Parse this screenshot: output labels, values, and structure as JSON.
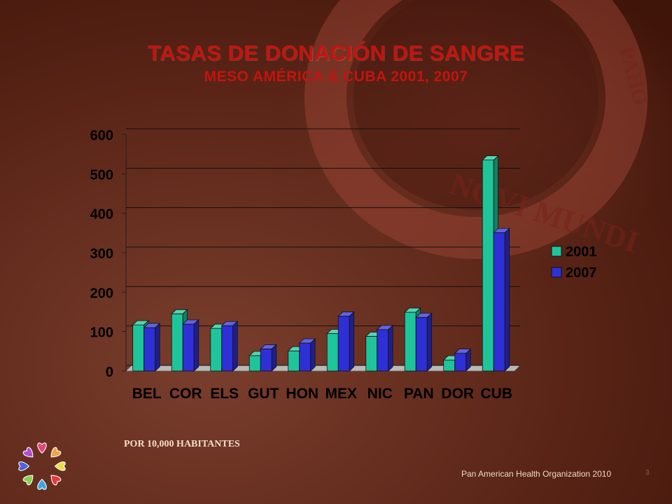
{
  "slide": {
    "title": "TASAS DE DONACIÓN DE SANGRE",
    "subtitle": "MESO AMÉRICA & CUBA 2001, 2007",
    "footnote": "POR 10,000 HABITANTES",
    "organization": "Pan American Health Organization 2010",
    "page_number": "3",
    "seal_text": "NOVI MUNDI",
    "seal_right_text": "PAHO"
  },
  "chart_data": {
    "type": "bar",
    "categories": [
      "BEL",
      "COR",
      "ELS",
      "GUT",
      "HON",
      "MEX",
      "NIC",
      "PAN",
      "DOR",
      "CUB"
    ],
    "series": [
      {
        "name": "2001",
        "values": [
          117,
          145,
          108,
          39,
          51,
          95,
          88,
          149,
          28,
          535
        ],
        "color": "#1fc59a"
      },
      {
        "name": "2007",
        "values": [
          110,
          119,
          115,
          56,
          71,
          139,
          105,
          136,
          45,
          351
        ],
        "color": "#2f2fd6"
      }
    ],
    "yticks": [
      "0",
      "100",
      "200",
      "300",
      "400",
      "500",
      "600"
    ],
    "ylim": [
      0,
      600
    ],
    "grid": true,
    "legend": "right"
  }
}
